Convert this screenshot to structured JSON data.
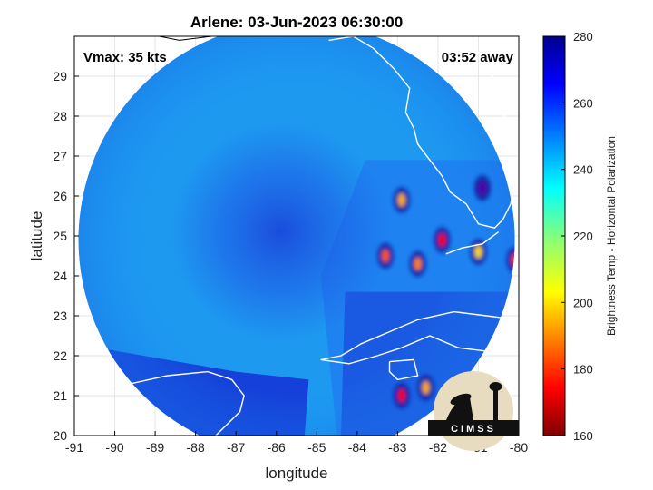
{
  "chart_data": {
    "type": "heatmap",
    "title": "Arlene: 03-Jun-2023 06:30:00",
    "xlabel": "longitude",
    "ylabel": "latitude",
    "xlim": [
      -91,
      -80
    ],
    "ylim": [
      20,
      30
    ],
    "x_ticks": [
      "-91",
      "-90",
      "-89",
      "-88",
      "-87",
      "-86",
      "-85",
      "-84",
      "-83",
      "-82",
      "-81",
      "-80"
    ],
    "y_ticks": [
      "20",
      "21",
      "22",
      "23",
      "24",
      "25",
      "26",
      "27",
      "28",
      "29"
    ],
    "colorbar": {
      "label": "Brightness Temp - Horizontal Polarization",
      "range": [
        160,
        280
      ],
      "ticks": [
        "160",
        "180",
        "200",
        "220",
        "240",
        "260",
        "280"
      ],
      "colormap": "jet"
    },
    "annotations": {
      "intensity": "Vmax: 35 kts",
      "time_offset": "03:52 away"
    },
    "storm_center": {
      "lon": -85.9,
      "lat": 25.1
    },
    "swath_center": {
      "lon": -85.5,
      "lat": 24.9
    },
    "swath_radius_deg": 5.4,
    "cold_cells": [
      {
        "lon": -82.9,
        "lat": 25.9,
        "tb": 185
      },
      {
        "lon": -83.3,
        "lat": 24.5,
        "tb": 195
      },
      {
        "lon": -82.5,
        "lat": 24.3,
        "tb": 190
      },
      {
        "lon": -81.9,
        "lat": 24.9,
        "tb": 205
      },
      {
        "lon": -81.0,
        "lat": 24.6,
        "tb": 180
      },
      {
        "lon": -80.1,
        "lat": 24.4,
        "tb": 200
      },
      {
        "lon": -80.9,
        "lat": 26.2,
        "tb": 225
      },
      {
        "lon": -82.3,
        "lat": 21.2,
        "tb": 185
      },
      {
        "lon": -82.9,
        "lat": 21.0,
        "tb": 205
      }
    ],
    "grid": true
  },
  "logo": {
    "text": "CIMSS"
  }
}
